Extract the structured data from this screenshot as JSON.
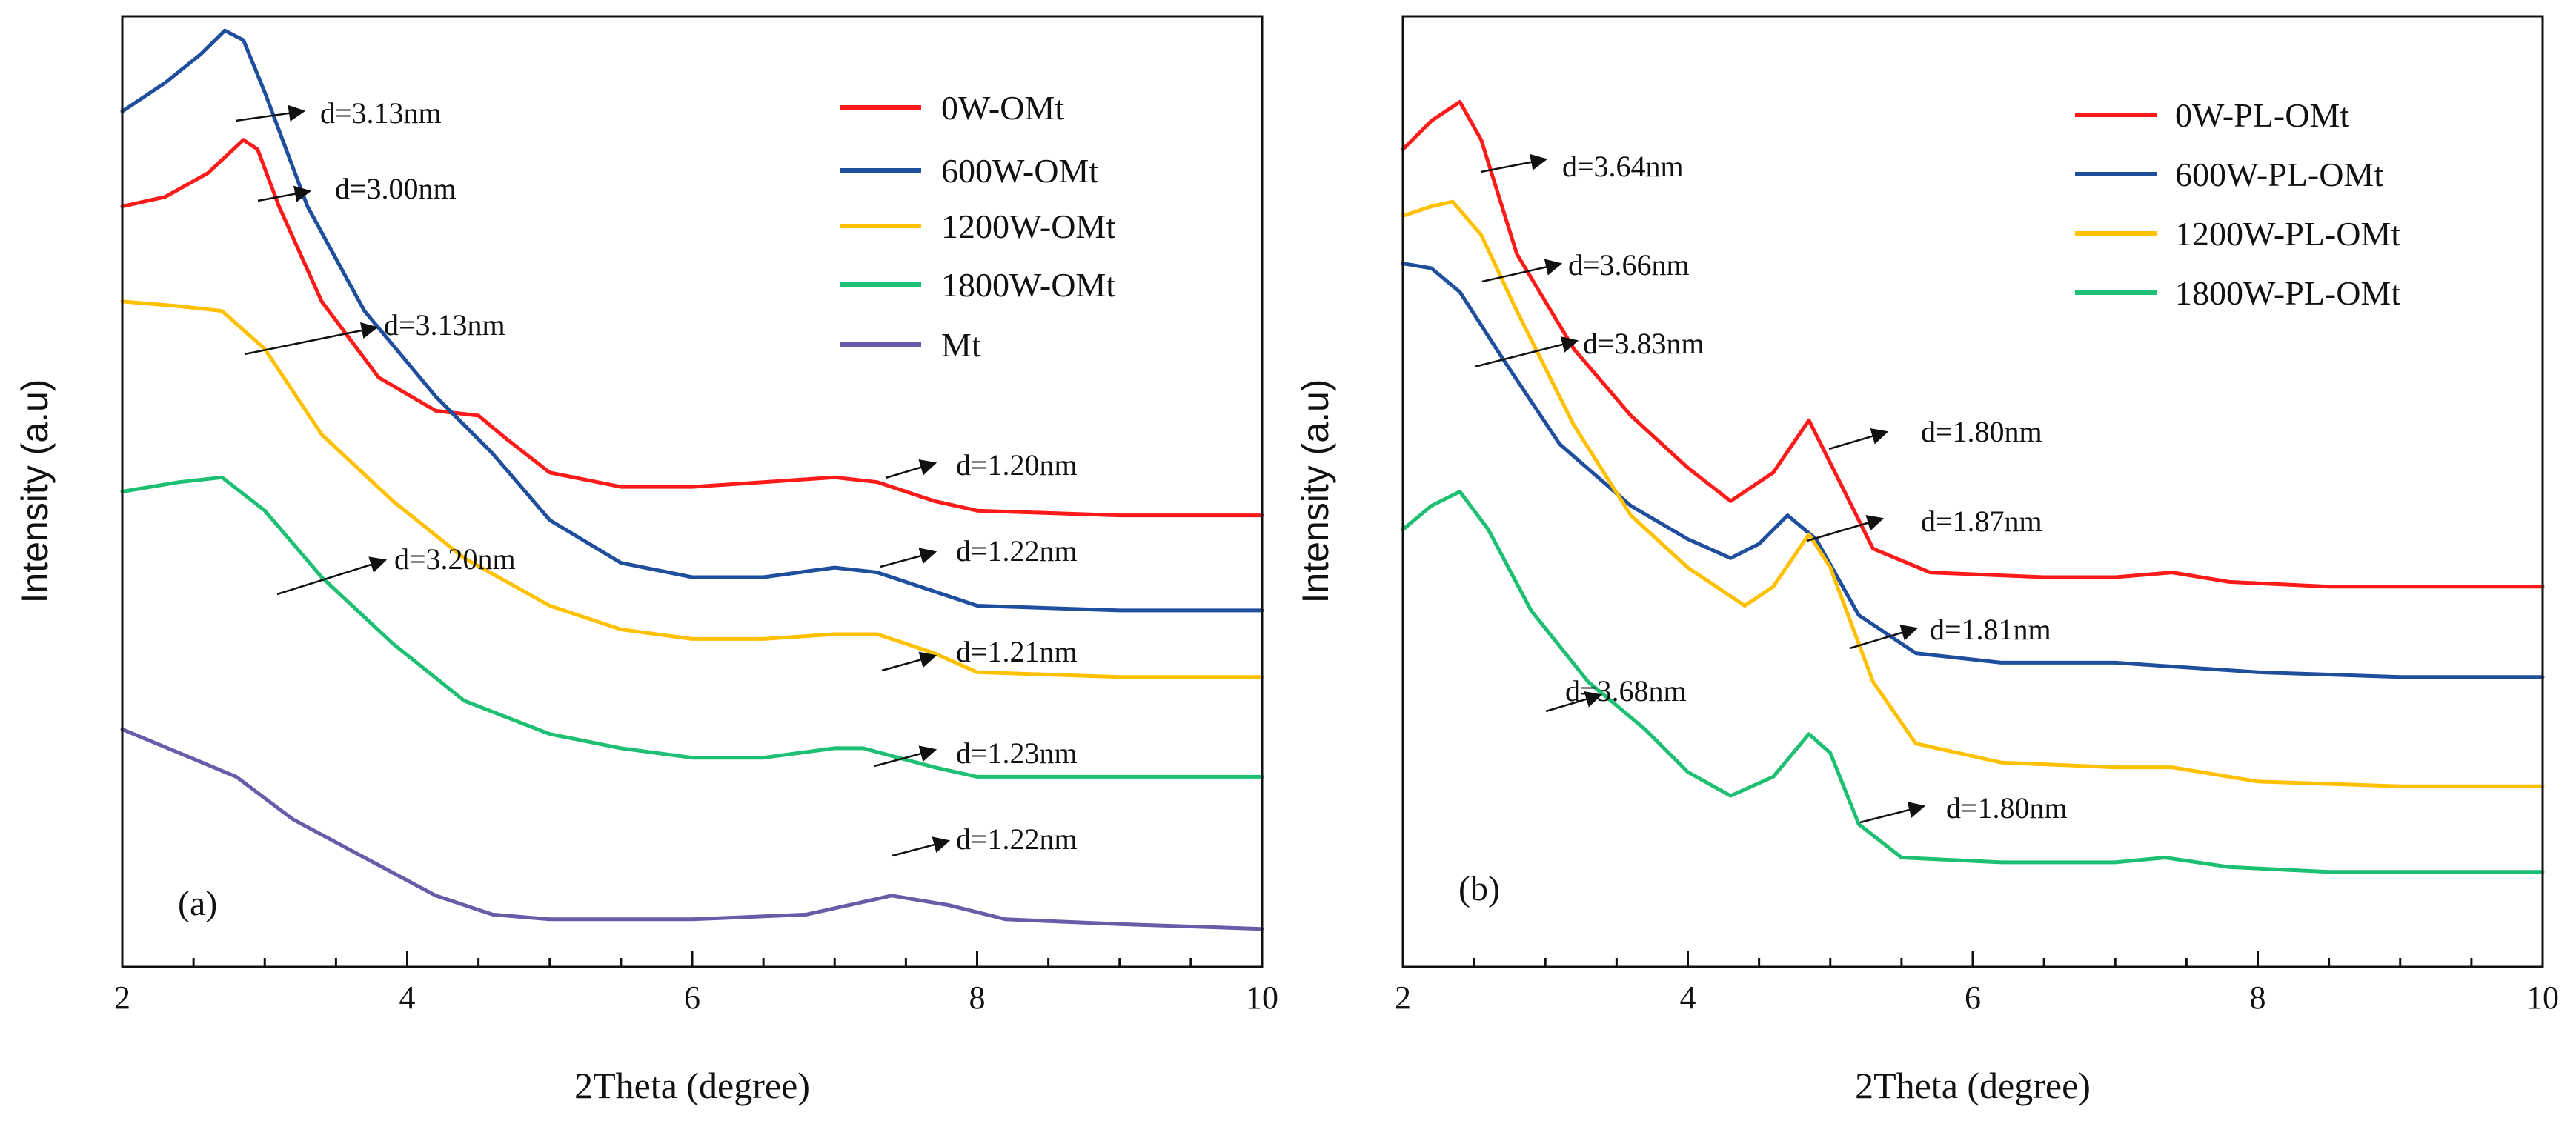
{
  "chart_data": [
    {
      "type": "line",
      "panel_label": "(a)",
      "xlabel": "2Theta (degree)",
      "ylabel": "Intensity (a.u)",
      "xlim": [
        2,
        10
      ],
      "ylim": [
        0,
        10
      ],
      "xticks": [
        2,
        4,
        6,
        8,
        10
      ],
      "legend_position": "top-right",
      "series": [
        {
          "name": "0W-OMt",
          "color": "#ff1a1a",
          "points": [
            [
              2.0,
              8.0
            ],
            [
              2.3,
              8.1
            ],
            [
              2.6,
              8.35
            ],
            [
              2.85,
              8.7
            ],
            [
              2.95,
              8.6
            ],
            [
              3.1,
              8.0
            ],
            [
              3.4,
              7.0
            ],
            [
              3.8,
              6.2
            ],
            [
              4.2,
              5.85
            ],
            [
              4.5,
              5.8
            ],
            [
              4.7,
              5.55
            ],
            [
              5.0,
              5.2
            ],
            [
              5.5,
              5.05
            ],
            [
              6.0,
              5.05
            ],
            [
              6.5,
              5.1
            ],
            [
              7.0,
              5.15
            ],
            [
              7.3,
              5.1
            ],
            [
              7.7,
              4.9
            ],
            [
              8.0,
              4.8
            ],
            [
              9.0,
              4.75
            ],
            [
              10.0,
              4.75
            ]
          ]
        },
        {
          "name": "600W-OMt",
          "color": "#1f4e9c",
          "points": [
            [
              2.0,
              9.0
            ],
            [
              2.3,
              9.3
            ],
            [
              2.55,
              9.6
            ],
            [
              2.72,
              9.85
            ],
            [
              2.85,
              9.75
            ],
            [
              3.0,
              9.2
            ],
            [
              3.3,
              8.0
            ],
            [
              3.7,
              6.9
            ],
            [
              4.2,
              6.0
            ],
            [
              4.6,
              5.4
            ],
            [
              5.0,
              4.7
            ],
            [
              5.5,
              4.25
            ],
            [
              6.0,
              4.1
            ],
            [
              6.5,
              4.1
            ],
            [
              7.0,
              4.2
            ],
            [
              7.3,
              4.15
            ],
            [
              7.7,
              3.95
            ],
            [
              8.0,
              3.8
            ],
            [
              9.0,
              3.75
            ],
            [
              10.0,
              3.75
            ]
          ]
        },
        {
          "name": "1200W-OMt",
          "color": "#ffc000",
          "points": [
            [
              2.0,
              7.0
            ],
            [
              2.4,
              6.95
            ],
            [
              2.7,
              6.9
            ],
            [
              3.0,
              6.5
            ],
            [
              3.4,
              5.6
            ],
            [
              3.9,
              4.9
            ],
            [
              4.4,
              4.3
            ],
            [
              5.0,
              3.8
            ],
            [
              5.5,
              3.55
            ],
            [
              6.0,
              3.45
            ],
            [
              6.5,
              3.45
            ],
            [
              7.0,
              3.5
            ],
            [
              7.3,
              3.5
            ],
            [
              7.7,
              3.3
            ],
            [
              8.0,
              3.1
            ],
            [
              9.0,
              3.05
            ],
            [
              10.0,
              3.05
            ]
          ]
        },
        {
          "name": "1800W-OMt",
          "color": "#1dbf73",
          "points": [
            [
              2.0,
              5.0
            ],
            [
              2.4,
              5.1
            ],
            [
              2.7,
              5.15
            ],
            [
              3.0,
              4.8
            ],
            [
              3.4,
              4.1
            ],
            [
              3.9,
              3.4
            ],
            [
              4.4,
              2.8
            ],
            [
              5.0,
              2.45
            ],
            [
              5.5,
              2.3
            ],
            [
              6.0,
              2.2
            ],
            [
              6.5,
              2.2
            ],
            [
              7.0,
              2.3
            ],
            [
              7.2,
              2.3
            ],
            [
              7.7,
              2.1
            ],
            [
              8.0,
              2.0
            ],
            [
              9.0,
              2.0
            ],
            [
              10.0,
              2.0
            ]
          ]
        },
        {
          "name": "Mt",
          "color": "#6a5aa8",
          "points": [
            [
              2.0,
              2.5
            ],
            [
              2.4,
              2.25
            ],
            [
              2.8,
              2.0
            ],
            [
              3.2,
              1.55
            ],
            [
              3.7,
              1.15
            ],
            [
              4.2,
              0.75
            ],
            [
              4.6,
              0.55
            ],
            [
              5.0,
              0.5
            ],
            [
              6.0,
              0.5
            ],
            [
              6.8,
              0.55
            ],
            [
              7.4,
              0.75
            ],
            [
              7.8,
              0.65
            ],
            [
              8.2,
              0.5
            ],
            [
              9.0,
              0.45
            ],
            [
              10.0,
              0.4
            ]
          ]
        }
      ],
      "annotations": [
        "d=3.13nm",
        "d=3.00nm",
        "d=3.13nm",
        "d=3.20nm",
        "d=1.20nm",
        "d=1.22nm",
        "d=1.21nm",
        "d=1.23nm",
        "d=1.22nm"
      ]
    },
    {
      "type": "line",
      "panel_label": "(b)",
      "xlabel": "2Theta (degree)",
      "ylabel": "Intensity (a.u)",
      "xlim": [
        2,
        10
      ],
      "ylim": [
        0,
        10
      ],
      "xticks": [
        2,
        4,
        6,
        8,
        10
      ],
      "legend_position": "top-right",
      "series": [
        {
          "name": "0W-PL-OMt",
          "color": "#ff1a1a",
          "points": [
            [
              2.0,
              8.6
            ],
            [
              2.2,
              8.9
            ],
            [
              2.4,
              9.1
            ],
            [
              2.55,
              8.7
            ],
            [
              2.8,
              7.5
            ],
            [
              3.2,
              6.5
            ],
            [
              3.6,
              5.8
            ],
            [
              4.0,
              5.25
            ],
            [
              4.3,
              4.9
            ],
            [
              4.6,
              5.2
            ],
            [
              4.85,
              5.75
            ],
            [
              5.0,
              5.3
            ],
            [
              5.3,
              4.4
            ],
            [
              5.7,
              4.15
            ],
            [
              6.5,
              4.1
            ],
            [
              7.0,
              4.1
            ],
            [
              7.4,
              4.15
            ],
            [
              7.8,
              4.05
            ],
            [
              8.5,
              4.0
            ],
            [
              10.0,
              4.0
            ]
          ]
        },
        {
          "name": "600W-PL-OMt",
          "color": "#1f4e9c",
          "points": [
            [
              2.0,
              7.4
            ],
            [
              2.2,
              7.35
            ],
            [
              2.4,
              7.1
            ],
            [
              2.7,
              6.4
            ],
            [
              3.1,
              5.5
            ],
            [
              3.6,
              4.85
            ],
            [
              4.0,
              4.5
            ],
            [
              4.3,
              4.3
            ],
            [
              4.5,
              4.45
            ],
            [
              4.7,
              4.75
            ],
            [
              4.9,
              4.5
            ],
            [
              5.2,
              3.7
            ],
            [
              5.6,
              3.3
            ],
            [
              6.2,
              3.2
            ],
            [
              7.0,
              3.2
            ],
            [
              8.0,
              3.1
            ],
            [
              9.0,
              3.05
            ],
            [
              10.0,
              3.05
            ]
          ]
        },
        {
          "name": "1200W-PL-OMt",
          "color": "#ffc000",
          "points": [
            [
              2.0,
              7.9
            ],
            [
              2.2,
              8.0
            ],
            [
              2.35,
              8.05
            ],
            [
              2.55,
              7.7
            ],
            [
              2.8,
              6.9
            ],
            [
              3.2,
              5.7
            ],
            [
              3.6,
              4.75
            ],
            [
              4.0,
              4.2
            ],
            [
              4.4,
              3.8
            ],
            [
              4.6,
              4.0
            ],
            [
              4.85,
              4.55
            ],
            [
              5.0,
              4.2
            ],
            [
              5.3,
              3.0
            ],
            [
              5.6,
              2.35
            ],
            [
              6.2,
              2.15
            ],
            [
              7.0,
              2.1
            ],
            [
              7.4,
              2.1
            ],
            [
              8.0,
              1.95
            ],
            [
              9.0,
              1.9
            ],
            [
              10.0,
              1.9
            ]
          ]
        },
        {
          "name": "1800W-PL-OMt",
          "color": "#1dbf73",
          "points": [
            [
              2.0,
              4.6
            ],
            [
              2.2,
              4.85
            ],
            [
              2.4,
              5.0
            ],
            [
              2.6,
              4.6
            ],
            [
              2.9,
              3.75
            ],
            [
              3.3,
              3.0
            ],
            [
              3.7,
              2.5
            ],
            [
              4.0,
              2.05
            ],
            [
              4.3,
              1.8
            ],
            [
              4.6,
              2.0
            ],
            [
              4.85,
              2.45
            ],
            [
              5.0,
              2.25
            ],
            [
              5.2,
              1.5
            ],
            [
              5.5,
              1.15
            ],
            [
              6.2,
              1.1
            ],
            [
              7.0,
              1.1
            ],
            [
              7.35,
              1.15
            ],
            [
              7.8,
              1.05
            ],
            [
              8.5,
              1.0
            ],
            [
              10.0,
              1.0
            ]
          ]
        }
      ],
      "annotations": [
        "d=3.64nm",
        "d=3.66nm",
        "d=3.83nm",
        "d=1.80nm",
        "d=1.87nm",
        "d=1.81nm",
        "d=3.68nm",
        "d=1.80nm"
      ]
    }
  ]
}
